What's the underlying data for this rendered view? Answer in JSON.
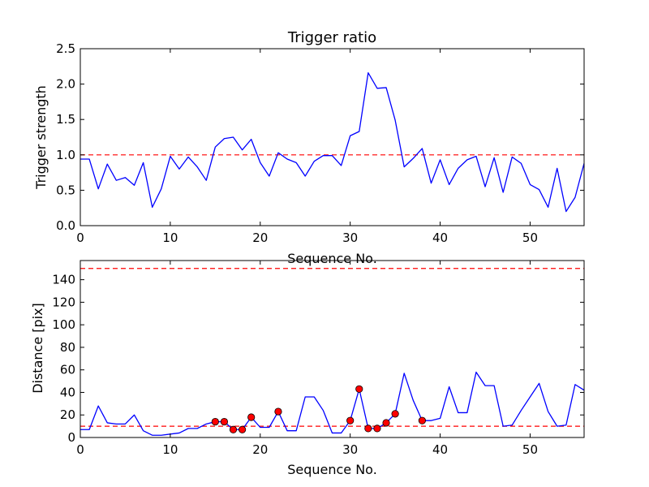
{
  "figure": {
    "background": "#ffffff"
  },
  "chart_data": [
    {
      "type": "line",
      "title": "Trigger ratio",
      "xlabel": "Sequence No.",
      "ylabel": "Trigger strength",
      "xlim": [
        0,
        56
      ],
      "ylim": [
        0,
        2.5
      ],
      "xticks": [
        0,
        10,
        20,
        30,
        40,
        50
      ],
      "xtick_labels": [
        "0",
        "10",
        "20",
        "30",
        "40",
        "50"
      ],
      "yticks": [
        0.0,
        0.5,
        1.0,
        1.5,
        2.0,
        2.5
      ],
      "ytick_labels": [
        "0.0",
        "0.5",
        "1.0",
        "1.5",
        "2.0",
        "2.5"
      ],
      "grid": false,
      "series": [
        {
          "color": "#0000ff",
          "x": [
            0,
            1,
            2,
            3,
            4,
            5,
            6,
            7,
            8,
            9,
            10,
            11,
            12,
            13,
            14,
            15,
            16,
            17,
            18,
            19,
            20,
            21,
            22,
            23,
            24,
            25,
            26,
            27,
            28,
            29,
            30,
            31,
            32,
            33,
            34,
            35,
            36,
            37,
            38,
            39,
            40,
            41,
            42,
            43,
            44,
            45,
            46,
            47,
            48,
            49,
            50,
            51,
            52,
            53,
            54,
            55,
            56
          ],
          "y": [
            0.94,
            0.94,
            0.52,
            0.87,
            0.64,
            0.68,
            0.57,
            0.89,
            0.26,
            0.52,
            0.98,
            0.8,
            0.97,
            0.83,
            0.64,
            1.11,
            1.23,
            1.25,
            1.07,
            1.22,
            0.89,
            0.7,
            1.03,
            0.94,
            0.89,
            0.7,
            0.91,
            0.99,
            0.99,
            0.85,
            1.27,
            1.33,
            2.16,
            1.94,
            1.95,
            1.49,
            0.83,
            0.95,
            1.09,
            0.6,
            0.93,
            0.58,
            0.81,
            0.93,
            0.98,
            0.55,
            0.96,
            0.47,
            0.97,
            0.88,
            0.58,
            0.51,
            0.26,
            0.81,
            0.2,
            0.4,
            0.88
          ]
        }
      ],
      "hlines": [
        {
          "y": 1.0,
          "color": "#ff0000",
          "style": "dashed"
        }
      ]
    },
    {
      "type": "line",
      "title": "",
      "xlabel": "Sequence No.",
      "ylabel": "Distance [pix]",
      "xlim": [
        0,
        56
      ],
      "ylim": [
        0,
        157
      ],
      "xticks": [
        0,
        10,
        20,
        30,
        40,
        50
      ],
      "xtick_labels": [
        "0",
        "10",
        "20",
        "30",
        "40",
        "50"
      ],
      "yticks": [
        0,
        20,
        40,
        60,
        80,
        100,
        120,
        140
      ],
      "ytick_labels": [
        "0",
        "20",
        "40",
        "60",
        "80",
        "100",
        "120",
        "140"
      ],
      "grid": false,
      "series": [
        {
          "color": "#0000ff",
          "x": [
            0,
            1,
            2,
            3,
            4,
            5,
            6,
            7,
            8,
            9,
            10,
            11,
            12,
            13,
            14,
            15,
            16,
            17,
            18,
            19,
            20,
            21,
            22,
            23,
            24,
            25,
            26,
            27,
            28,
            29,
            30,
            31,
            32,
            33,
            34,
            35,
            36,
            37,
            38,
            39,
            40,
            41,
            42,
            43,
            44,
            45,
            46,
            47,
            48,
            49,
            50,
            51,
            52,
            53,
            54,
            55,
            56
          ],
          "y": [
            7,
            7,
            28,
            13,
            12,
            12,
            20,
            6,
            2,
            2,
            3,
            4,
            8,
            8,
            12,
            14,
            14,
            7,
            7,
            18,
            9,
            9,
            23,
            6,
            6,
            36,
            36,
            24,
            4,
            4,
            15,
            43,
            8,
            8,
            13,
            21,
            57,
            33,
            15,
            15,
            17,
            45,
            22,
            22,
            58,
            46,
            46,
            10,
            11,
            24,
            36,
            48,
            23,
            10,
            11,
            47,
            42
          ]
        }
      ],
      "markers": {
        "color": "#ff0000",
        "edge_color": "#000000",
        "x": [
          15,
          16,
          17,
          18,
          19,
          22,
          30,
          31,
          32,
          33,
          34,
          35,
          38
        ],
        "y": [
          14,
          14,
          7,
          7,
          18,
          23,
          15,
          43,
          8,
          8,
          13,
          21,
          15
        ]
      },
      "hlines": [
        {
          "y": 10,
          "color": "#ff0000",
          "style": "dashed"
        },
        {
          "y": 150,
          "color": "#ff0000",
          "style": "dashed"
        }
      ]
    }
  ]
}
